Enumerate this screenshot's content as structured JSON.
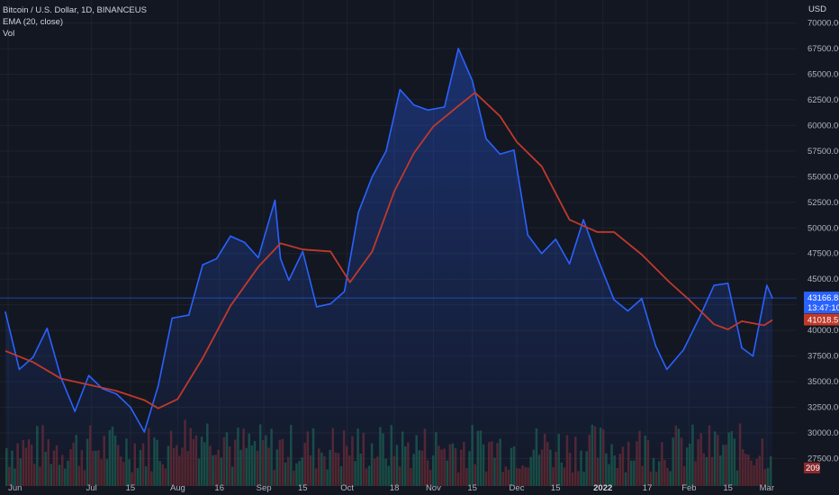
{
  "legend": {
    "symbol": "Bitcoin / U.S. Dollar, 1D, BINANCEUS",
    "indicator": "EMA (20, close)",
    "volume": "Vol"
  },
  "currency": "USD",
  "colors": {
    "background": "#131722",
    "price_line": "#2962ff",
    "ema_line": "#c0392b",
    "volume_up": "#1b5e4a",
    "volume_down": "#6b2a2e",
    "grid": "#1e222d"
  },
  "badges": {
    "price": "43166.83",
    "countdown": "13:47:10",
    "ema": "41018.59",
    "volume": "209"
  },
  "chart_data": {
    "type": "line",
    "y_axis_ticks": [
      "70000.00",
      "67500.00",
      "65000.00",
      "62500.00",
      "60000.00",
      "57500.00",
      "55000.00",
      "52500.00",
      "50000.00",
      "47500.00",
      "45000.00",
      "42500.00",
      "40000.00",
      "37500.00",
      "35000.00",
      "32500.00",
      "30000.00",
      "27500.00"
    ],
    "x_axis_ticks": [
      {
        "label": "Jun",
        "x": "2021-06-01"
      },
      {
        "label": "Jul",
        "x": "2021-07-01"
      },
      {
        "label": "15",
        "x": "2021-07-15"
      },
      {
        "label": "Aug",
        "x": "2021-08-01"
      },
      {
        "label": "16",
        "x": "2021-08-16"
      },
      {
        "label": "Sep",
        "x": "2021-09-01"
      },
      {
        "label": "15",
        "x": "2021-09-15"
      },
      {
        "label": "Oct",
        "x": "2021-10-01"
      },
      {
        "label": "18",
        "x": "2021-10-18"
      },
      {
        "label": "Nov",
        "x": "2021-11-01"
      },
      {
        "label": "15",
        "x": "2021-11-15"
      },
      {
        "label": "Dec",
        "x": "2021-12-01"
      },
      {
        "label": "15",
        "x": "2021-12-15"
      },
      {
        "label": "2022",
        "x": "2022-01-01",
        "bold": true
      },
      {
        "label": "17",
        "x": "2022-01-17"
      },
      {
        "label": "Feb",
        "x": "2022-02-01"
      },
      {
        "label": "15",
        "x": "2022-02-15"
      },
      {
        "label": "Mar",
        "x": "2022-03-01"
      }
    ],
    "ylim": [
      27500,
      70000
    ],
    "series": [
      {
        "name": "Bitcoin / U.S. Dollar",
        "x": [
          "2021-05-31",
          "2021-06-05",
          "2021-06-10",
          "2021-06-15",
          "2021-06-20",
          "2021-06-25",
          "2021-06-30",
          "2021-07-05",
          "2021-07-10",
          "2021-07-15",
          "2021-07-20",
          "2021-07-25",
          "2021-07-30",
          "2021-08-05",
          "2021-08-10",
          "2021-08-15",
          "2021-08-20",
          "2021-08-25",
          "2021-08-30",
          "2021-09-05",
          "2021-09-07",
          "2021-09-10",
          "2021-09-15",
          "2021-09-20",
          "2021-09-25",
          "2021-09-30",
          "2021-10-05",
          "2021-10-10",
          "2021-10-15",
          "2021-10-20",
          "2021-10-25",
          "2021-10-30",
          "2021-11-05",
          "2021-11-10",
          "2021-11-15",
          "2021-11-20",
          "2021-11-25",
          "2021-11-30",
          "2021-12-05",
          "2021-12-10",
          "2021-12-15",
          "2021-12-20",
          "2021-12-25",
          "2021-12-30",
          "2022-01-05",
          "2022-01-10",
          "2022-01-15",
          "2022-01-20",
          "2022-01-24",
          "2022-01-30",
          "2022-02-05",
          "2022-02-10",
          "2022-02-15",
          "2022-02-20",
          "2022-02-24",
          "2022-03-01",
          "2022-03-03"
        ],
        "values": [
          41800,
          36200,
          37400,
          40200,
          35400,
          32100,
          35600,
          34300,
          33800,
          32500,
          30100,
          34600,
          41200,
          41500,
          46400,
          47000,
          49200,
          48600,
          47100,
          52700,
          47000,
          44900,
          47700,
          42300,
          42600,
          43800,
          51500,
          55000,
          57500,
          63500,
          62000,
          61500,
          61800,
          67500,
          64400,
          58700,
          57200,
          57600,
          49300,
          47500,
          48900,
          46500,
          50800,
          47100,
          43000,
          41900,
          43100,
          38500,
          36200,
          38100,
          41400,
          44400,
          44600,
          38300,
          37500,
          44400,
          43166
        ]
      },
      {
        "name": "EMA (20, close)",
        "x": [
          "2021-05-31",
          "2021-06-10",
          "2021-06-20",
          "2021-06-30",
          "2021-07-10",
          "2021-07-20",
          "2021-07-25",
          "2021-08-01",
          "2021-08-10",
          "2021-08-20",
          "2021-08-30",
          "2021-09-07",
          "2021-09-15",
          "2021-09-25",
          "2021-10-02",
          "2021-10-10",
          "2021-10-18",
          "2021-10-25",
          "2021-11-01",
          "2021-11-10",
          "2021-11-16",
          "2021-11-25",
          "2021-12-01",
          "2021-12-10",
          "2021-12-20",
          "2021-12-30",
          "2022-01-05",
          "2022-01-15",
          "2022-01-25",
          "2022-02-01",
          "2022-02-10",
          "2022-02-15",
          "2022-02-20",
          "2022-02-28",
          "2022-03-03"
        ],
        "values": [
          38000,
          36900,
          35300,
          34700,
          34100,
          33200,
          32400,
          33300,
          37300,
          42400,
          46200,
          48500,
          47900,
          47700,
          44700,
          47700,
          53600,
          57300,
          59900,
          61900,
          63200,
          60900,
          58400,
          56000,
          50800,
          49600,
          49600,
          47400,
          44700,
          43000,
          40600,
          40100,
          40900,
          40500,
          41018
        ]
      }
    ],
    "volume": {
      "bars": 275,
      "last_value": 209
    }
  }
}
